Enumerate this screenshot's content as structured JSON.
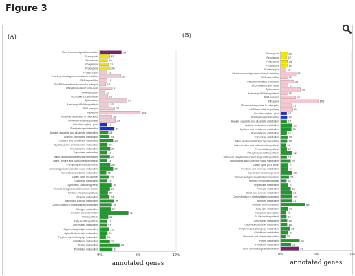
{
  "figure": {
    "title": "Figure 3"
  },
  "colors": {
    "purple": "#7d1f6a",
    "yellow": "#f2e600",
    "pink": "#f6c7d0",
    "blue": "#1a2fd6",
    "green": "#1e9a2a",
    "grid": "#cccccc"
  },
  "chart_data": [
    {
      "type": "bar",
      "orientation": "horizontal",
      "panel_label": "(A)",
      "xlabel": "annotated genes",
      "xticks": [
        "0%",
        "5%",
        "10%"
      ],
      "xlim": [
        0,
        10
      ],
      "unit": "percent",
      "grid": true,
      "categories": [
        "Plant hormone signal transduction",
        "Endocytosis",
        "Peroxisome",
        "Phagosome",
        "Proteasome",
        "Protein export",
        "Protein processing in endoplasmic reticulum",
        "RNA degradation",
        "SNARE interactions in vesicular transport",
        "Ubiquitin mediated proteolysis",
        "DNA replication",
        "Nucleotide excision repair",
        "Spliceosome",
        "Aminoacyl-tRNA biosynthesis",
        "RNA transport",
        "Ribosome",
        "Ribosome biogenesis in eukaryotes",
        "mRNA surveillance pathway",
        "Circadian rhythm - plant",
        "Plant-pathogen interaction",
        "Alanine, aspartate and glutamate metabolism",
        "Arginine and proline metabolism",
        "Cysteine and methionine metabolism",
        "Glycine, serine and threonine metabolism",
        "Phenylalanine metabolism",
        "Tryptophan metabolism",
        "Valine, leucine and isoleucine degradation",
        "Valine, leucine and isoleucine biosynthesis",
        "Phenylpropanoid biosynthesis",
        "Amino sugar and nucleotide sugar metabolism",
        "Ascorbate and aldarate metabolism",
        "Citrate cycle (TCA cycle)",
        "Galactose metabolism",
        "Glycolysis / Gluconeogenesis",
        "Pentose and glucuronate interconversions",
        "Pentose phosphate pathway",
        "Pyruvate metabolism",
        "Starch and sucrose metabolism",
        "Carbon fixation in photosynthetic organisms",
        "Nitrogen metabolism",
        "Oxidative phosphorylation",
        "Photosynthesis",
        "Fatty acid biosynthesis",
        "Glycerolipid metabolism",
        "Glycerophospholipid metabolism",
        "alpha-Linolenic acid metabolism",
        "Porphyrin and chlorophyll metabolism",
        "Glutathione metabolism",
        "Purine metabolism",
        "Pyrimidine metabolism"
      ],
      "values": [
        54,
        25,
        19,
        22,
        26,
        18,
        53,
        18,
        15,
        31,
        12,
        20,
        67,
        23,
        37,
        101,
        30,
        39,
        18,
        36,
        21,
        24,
        33,
        19,
        26,
        18,
        25,
        18,
        26,
        33,
        16,
        23,
        18,
        30,
        25,
        20,
        24,
        35,
        30,
        27,
        71,
        21,
        18,
        17,
        23,
        19,
        15,
        25,
        49,
        31
      ],
      "colors": [
        "purple",
        "yellow",
        "yellow",
        "yellow",
        "yellow",
        "pink",
        "pink",
        "pink",
        "pink",
        "pink",
        "pink",
        "pink",
        "pink",
        "pink",
        "pink",
        "pink",
        "pink",
        "pink",
        "blue",
        "blue",
        "green",
        "green",
        "green",
        "green",
        "green",
        "green",
        "green",
        "green",
        "green",
        "green",
        "green",
        "green",
        "green",
        "green",
        "green",
        "green",
        "green",
        "green",
        "green",
        "green",
        "green",
        "green",
        "green",
        "green",
        "green",
        "green",
        "green",
        "green",
        "green",
        "green"
      ]
    },
    {
      "type": "bar",
      "orientation": "horizontal",
      "panel_label": "(B)",
      "xlabel": "annotated genes",
      "xticks": [
        "0%",
        "5%",
        "10%"
      ],
      "xlim": [
        0,
        10
      ],
      "unit": "percent",
      "grid": true,
      "categories": [
        "Endocytosis",
        "Peroxisome",
        "Phagosome",
        "Proteasome",
        "Protein export",
        "Protein processing in endoplasmic reticulum",
        "RNA degradation",
        "Ubiquitin mediated proteolysis",
        "Nucleotide excision repair",
        "Spliceosome",
        "Aminoacyl-tRNA biosynthesis",
        "RNA transport",
        "Ribosome",
        "Ribosome biogenesis in eukaryotes",
        "mRNA surveillance pathway",
        "Circadian rhythm - plant",
        "Plant-pathogen interaction",
        "Alanine, aspartate and glutamate metabolism",
        "Arginine and proline metabolism",
        "Cysteine and methionine metabolism",
        "Phenylalanine metabolism",
        "Tryptophan metabolism",
        "Valine, leucine and isoleucine degradation",
        "Valine, leucine and isoleucine biosynthesis",
        "Flavonoid biosynthesis",
        "Phenylpropanoid biosynthesis",
        "Stilbenoid, diarylheptanoid and gingerol biosynthesis",
        "Amino sugar and nucleotide sugar metabolism",
        "Citrate cycle (TCA cycle)",
        "Fructose and mannose metabolism",
        "Glycolysis / Gluconeogenesis",
        "Pentose and glucuronate interconversions",
        "Pentose phosphate pathway",
        "Propanoate metabolism",
        "Pyruvate metabolism",
        "Starch and sucrose metabolism",
        "Carbon fixation in photosynthetic organisms",
        "Nitrogen metabolism",
        "Oxidative phosphorylation",
        "Fatty acid metabolism",
        "Fatty acid degradation",
        "N-Glycan biosynthesis",
        "Glycerolipid metabolism",
        "Glycerophospholipid metabolism",
        "Porphyrin and chlorophyll metabolism",
        "Glutathione metabolism",
        "Limonene and pinene degradation",
        "Purine metabolism",
        "Pyrimidine metabolism",
        "Plant hormone signal transduction"
      ],
      "values": [
        18,
        17,
        19,
        18,
        15,
        43,
        18,
        36,
        21,
        56,
        18,
        42,
        106,
        31,
        34,
        17,
        18,
        17,
        32,
        30,
        17,
        19,
        18,
        14,
        17,
        32,
        17,
        28,
        21,
        21,
        32,
        23,
        16,
        21,
        28,
        31,
        32,
        31,
        68,
        20,
        15,
        16,
        18,
        18,
        26,
        21,
        13,
        53,
        29,
        51
      ],
      "colors": [
        "yellow",
        "yellow",
        "yellow",
        "yellow",
        "pink",
        "pink",
        "pink",
        "pink",
        "pink",
        "pink",
        "pink",
        "pink",
        "pink",
        "pink",
        "pink",
        "blue",
        "blue",
        "green",
        "green",
        "green",
        "green",
        "green",
        "green",
        "green",
        "green",
        "green",
        "green",
        "green",
        "green",
        "green",
        "green",
        "green",
        "green",
        "green",
        "green",
        "green",
        "green",
        "green",
        "green",
        "green",
        "green",
        "green",
        "green",
        "green",
        "green",
        "green",
        "green",
        "green",
        "green",
        "purple"
      ]
    }
  ]
}
